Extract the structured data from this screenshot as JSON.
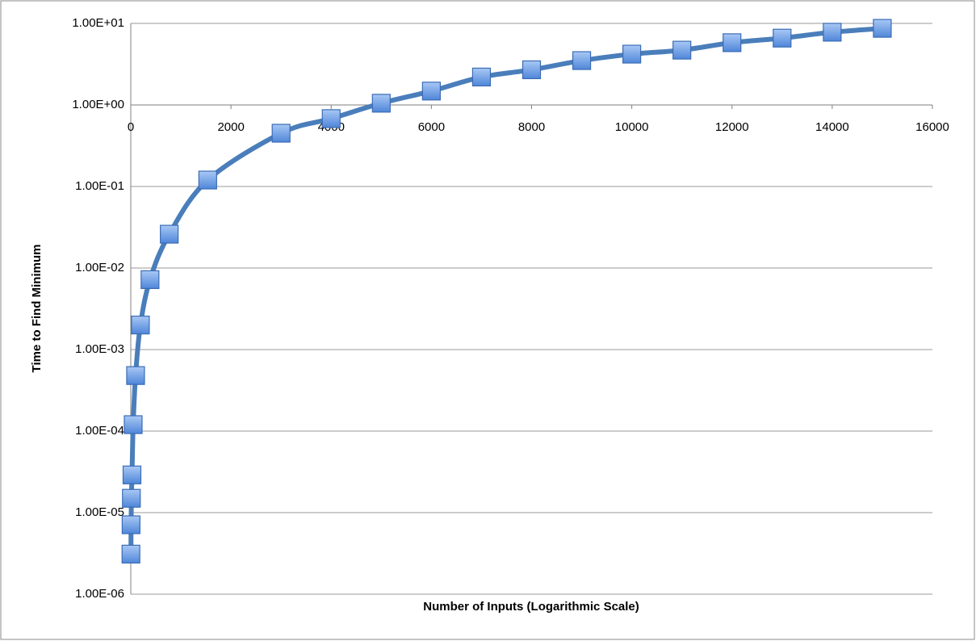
{
  "chart_data": {
    "type": "line",
    "x_label": "Number of Inputs (Logarithmic Scale)",
    "y_label": "Time to Find Minimum",
    "y_scale": "log",
    "x_axis_crosses_y": 1,
    "grid": true,
    "xlim": [
      0,
      16000
    ],
    "xticks": [
      0,
      2000,
      4000,
      6000,
      8000,
      10000,
      12000,
      14000,
      16000
    ],
    "ylim": [
      1e-06,
      10
    ],
    "yticks": [
      {
        "value": 1e-06,
        "label": "1.00E-06"
      },
      {
        "value": 1e-05,
        "label": "1.00E-05"
      },
      {
        "value": 0.0001,
        "label": "1.00E-04"
      },
      {
        "value": 0.001,
        "label": "1.00E-03"
      },
      {
        "value": 0.01,
        "label": "1.00E-02"
      },
      {
        "value": 0.1,
        "label": "1.00E-01"
      },
      {
        "value": 1,
        "label": "1.00E+00"
      },
      {
        "value": 10,
        "label": "1.00E+01"
      }
    ],
    "x": [
      3,
      6,
      12,
      24,
      48,
      96,
      192,
      384,
      768,
      1536,
      3000,
      4000,
      5000,
      6000,
      7000,
      8000,
      9000,
      10000,
      11000,
      12000,
      13000,
      14000,
      15000
    ],
    "series": [
      {
        "color": "#4a7ebb",
        "values": [
          3.1e-06,
          7.1e-06,
          1.5e-05,
          2.9e-05,
          0.00012,
          0.00048,
          0.002,
          0.0072,
          0.026,
          0.12,
          0.45,
          0.68,
          1.05,
          1.48,
          2.2,
          2.7,
          3.5,
          4.2,
          4.7,
          5.8,
          6.6,
          7.8,
          8.7
        ]
      }
    ]
  }
}
